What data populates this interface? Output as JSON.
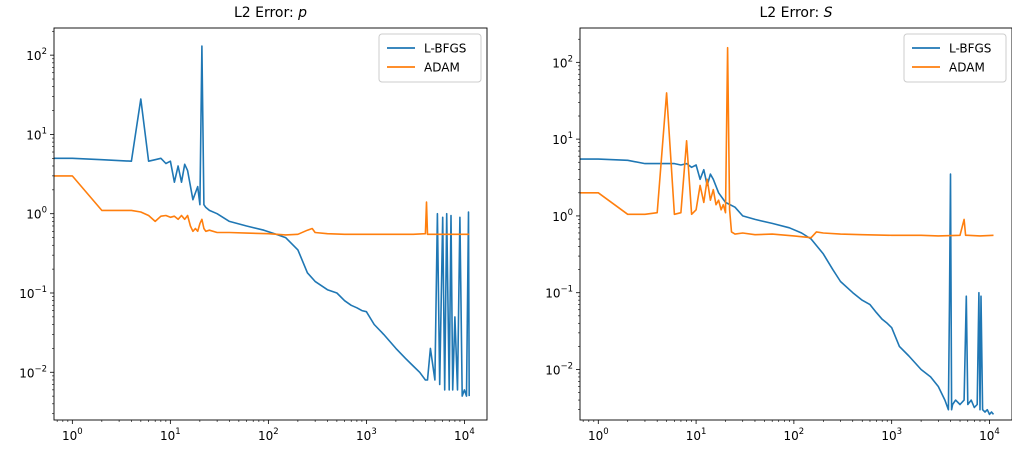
{
  "chart_data": [
    {
      "type": "line",
      "title": "L2 Error: ",
      "title_var": "p",
      "xscale": "log",
      "yscale": "log",
      "xlim": [
        0.65,
        17000
      ],
      "ylim": [
        0.0025,
        220
      ],
      "xticks": [
        {
          "value": 1,
          "base": "10",
          "exp": "0"
        },
        {
          "value": 10,
          "base": "10",
          "exp": "1"
        },
        {
          "value": 100,
          "base": "10",
          "exp": "2"
        },
        {
          "value": 1000,
          "base": "10",
          "exp": "3"
        },
        {
          "value": 10000,
          "base": "10",
          "exp": "4"
        }
      ],
      "yticks": [
        {
          "value": 0.01,
          "base": "10",
          "exp": "−2"
        },
        {
          "value": 0.1,
          "base": "10",
          "exp": "−1"
        },
        {
          "value": 1,
          "base": "10",
          "exp": "0"
        },
        {
          "value": 10,
          "base": "10",
          "exp": "1"
        },
        {
          "value": 100,
          "base": "10",
          "exp": "2"
        }
      ],
      "grid": false,
      "legend": "top-right",
      "series": [
        {
          "name": "L-BFGS",
          "color": "#1f77b4",
          "x": [
            0.65,
            1,
            2,
            4,
            5,
            6,
            7,
            8,
            9,
            10,
            11,
            12,
            13,
            14,
            15,
            17,
            19,
            20,
            21,
            22,
            23,
            25,
            30,
            40,
            60,
            90,
            120,
            150,
            200,
            250,
            300,
            400,
            500,
            600,
            700,
            800,
            900,
            1000,
            1200,
            1500,
            2000,
            2500,
            3000,
            3500,
            4000,
            4200,
            4500,
            5000,
            5300,
            5600,
            6000,
            6300,
            6600,
            7000,
            7300,
            7600,
            8000,
            8500,
            9000,
            9500,
            10000,
            10500,
            11000,
            11200
          ],
          "y": [
            5.0,
            5.0,
            4.8,
            4.6,
            28,
            4.6,
            4.8,
            5.0,
            4.3,
            4.6,
            2.5,
            4.0,
            2.5,
            4.2,
            3.5,
            1.5,
            2.2,
            1.3,
            130,
            1.3,
            1.2,
            1.1,
            1.0,
            0.8,
            0.7,
            0.62,
            0.55,
            0.5,
            0.35,
            0.18,
            0.14,
            0.11,
            0.1,
            0.08,
            0.07,
            0.065,
            0.06,
            0.058,
            0.04,
            0.03,
            0.02,
            0.015,
            0.012,
            0.01,
            0.008,
            0.008,
            0.02,
            0.008,
            1.0,
            0.007,
            0.9,
            0.006,
            1.0,
            0.006,
            0.95,
            0.006,
            0.05,
            0.006,
            0.9,
            0.005,
            0.006,
            0.005,
            1.05,
            0.005
          ]
        },
        {
          "name": "ADAM",
          "color": "#ff7f0e",
          "x": [
            0.65,
            1,
            2,
            4,
            5,
            6,
            7,
            8,
            9,
            10,
            11,
            12,
            13,
            14,
            15,
            16,
            17,
            18,
            19,
            20,
            21,
            22,
            23,
            25,
            30,
            40,
            60,
            100,
            150,
            200,
            250,
            280,
            300,
            400,
            600,
            1000,
            2000,
            3000,
            4000,
            4100,
            4200,
            4300,
            5000,
            8000,
            11200
          ],
          "y": [
            3.0,
            3.0,
            1.1,
            1.1,
            1.05,
            0.95,
            0.8,
            0.93,
            0.95,
            0.9,
            0.93,
            0.85,
            0.95,
            0.85,
            0.95,
            0.7,
            0.6,
            0.65,
            0.6,
            0.75,
            0.85,
            0.65,
            0.6,
            0.62,
            0.58,
            0.58,
            0.57,
            0.56,
            0.54,
            0.55,
            0.62,
            0.65,
            0.58,
            0.56,
            0.55,
            0.55,
            0.55,
            0.55,
            0.56,
            1.4,
            0.55,
            0.55,
            0.55,
            0.55,
            0.55
          ]
        }
      ]
    },
    {
      "type": "line",
      "title": "L2 Error: ",
      "title_var": "S",
      "xscale": "log",
      "yscale": "log",
      "xlim": [
        0.65,
        17000
      ],
      "ylim": [
        0.0022,
        280
      ],
      "xticks": [
        {
          "value": 1,
          "base": "10",
          "exp": "0"
        },
        {
          "value": 10,
          "base": "10",
          "exp": "1"
        },
        {
          "value": 100,
          "base": "10",
          "exp": "2"
        },
        {
          "value": 1000,
          "base": "10",
          "exp": "3"
        },
        {
          "value": 10000,
          "base": "10",
          "exp": "4"
        }
      ],
      "yticks": [
        {
          "value": 0.01,
          "base": "10",
          "exp": "−2"
        },
        {
          "value": 0.1,
          "base": "10",
          "exp": "−1"
        },
        {
          "value": 1,
          "base": "10",
          "exp": "0"
        },
        {
          "value": 10,
          "base": "10",
          "exp": "1"
        },
        {
          "value": 100,
          "base": "10",
          "exp": "2"
        }
      ],
      "grid": false,
      "legend": "top-right",
      "series": [
        {
          "name": "L-BFGS",
          "color": "#1f77b4",
          "x": [
            0.65,
            1,
            2,
            3,
            4,
            5,
            6,
            7,
            8,
            9,
            10,
            11,
            12,
            13,
            14,
            15,
            17,
            20,
            25,
            30,
            40,
            60,
            90,
            120,
            150,
            200,
            250,
            300,
            400,
            500,
            600,
            700,
            800,
            900,
            1000,
            1200,
            1500,
            2000,
            2500,
            3000,
            3500,
            3800,
            3900,
            4000,
            4100,
            4200,
            4500,
            5000,
            5500,
            5800,
            6000,
            6500,
            7000,
            7500,
            7800,
            8000,
            8200,
            8500,
            9000,
            9500,
            10000,
            10500,
            11000
          ],
          "y": [
            5.5,
            5.5,
            5.3,
            4.8,
            4.8,
            4.8,
            4.8,
            4.6,
            4.8,
            4.3,
            4.6,
            3.0,
            4.0,
            2.5,
            3.5,
            3.0,
            2.0,
            1.5,
            1.3,
            1.0,
            0.9,
            0.8,
            0.7,
            0.6,
            0.5,
            0.32,
            0.2,
            0.14,
            0.1,
            0.08,
            0.07,
            0.055,
            0.045,
            0.04,
            0.035,
            0.02,
            0.015,
            0.01,
            0.008,
            0.006,
            0.004,
            0.003,
            0.08,
            3.5,
            0.003,
            0.0035,
            0.004,
            0.0035,
            0.004,
            0.09,
            0.0035,
            0.004,
            0.0032,
            0.0035,
            0.1,
            0.003,
            0.09,
            0.003,
            0.0028,
            0.003,
            0.0026,
            0.0028,
            0.0026
          ]
        },
        {
          "name": "ADAM",
          "color": "#ff7f0e",
          "x": [
            0.65,
            1,
            2,
            3,
            4,
            5,
            6,
            7,
            8,
            9,
            10,
            11,
            12,
            13,
            14,
            15,
            16,
            17,
            18,
            19,
            20,
            21,
            22,
            23,
            25,
            30,
            40,
            60,
            100,
            150,
            170,
            200,
            300,
            500,
            1000,
            2000,
            3000,
            5000,
            5500,
            5700,
            6000,
            8000,
            11000
          ],
          "y": [
            2.0,
            2.0,
            1.05,
            1.05,
            1.1,
            40,
            1.05,
            1.1,
            9.5,
            1.05,
            1.2,
            2.5,
            1.5,
            3.0,
            1.6,
            2.2,
            1.4,
            1.6,
            1.2,
            1.4,
            1.1,
            155,
            1.2,
            0.62,
            0.58,
            0.6,
            0.57,
            0.58,
            0.55,
            0.52,
            0.62,
            0.6,
            0.58,
            0.57,
            0.56,
            0.56,
            0.55,
            0.56,
            0.9,
            0.56,
            0.56,
            0.55,
            0.56
          ]
        }
      ]
    }
  ]
}
